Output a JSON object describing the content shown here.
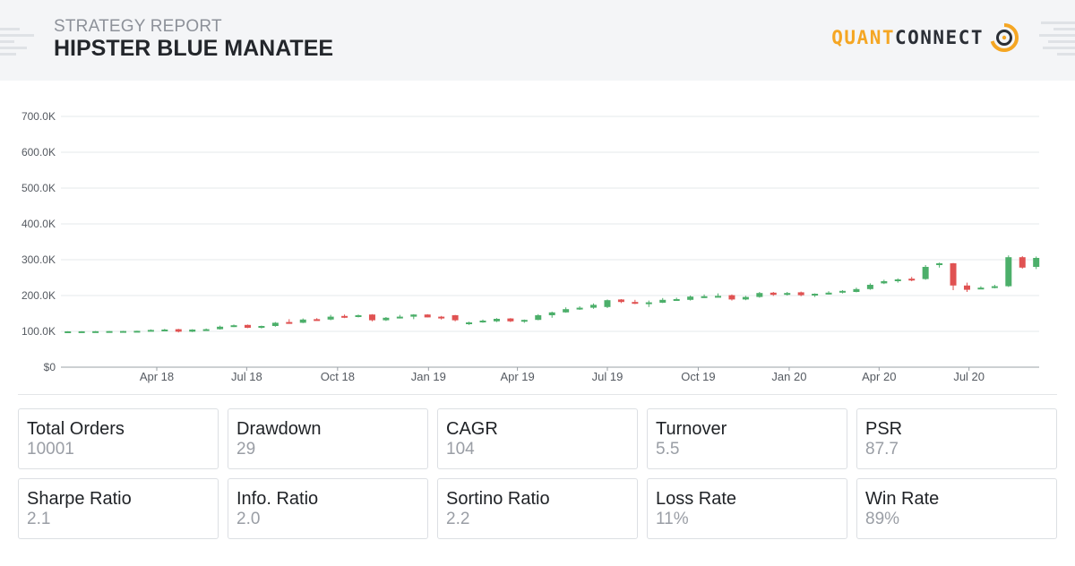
{
  "header": {
    "subtitle": "STRATEGY REPORT",
    "title": "HIPSTER BLUE MANATEE",
    "logo_left": "QUANT",
    "logo_right": "CONNECT",
    "brand_color": "#f5a623"
  },
  "chart_data": {
    "type": "candlestick",
    "title": "",
    "xlabel": "",
    "ylabel": "",
    "ylim": [
      0,
      700000
    ],
    "yticks": [
      {
        "value": 0,
        "label": "$0"
      },
      {
        "value": 100000,
        "label": "100.0K"
      },
      {
        "value": 200000,
        "label": "200.0K"
      },
      {
        "value": 300000,
        "label": "300.0K"
      },
      {
        "value": 400000,
        "label": "400.0K"
      },
      {
        "value": 500000,
        "label": "500.0K"
      },
      {
        "value": 600000,
        "label": "600.0K"
      },
      {
        "value": 700000,
        "label": "700.0K"
      }
    ],
    "xlim": [
      "2017-12-25",
      "2020-09-10"
    ],
    "xticks": [
      {
        "date": "2018-04-01",
        "label": "Apr 18"
      },
      {
        "date": "2018-07-01",
        "label": "Jul 18"
      },
      {
        "date": "2018-10-01",
        "label": "Oct 18"
      },
      {
        "date": "2019-01-01",
        "label": "Jan 19"
      },
      {
        "date": "2019-04-01",
        "label": "Apr 19"
      },
      {
        "date": "2019-07-01",
        "label": "Jul 19"
      },
      {
        "date": "2019-10-01",
        "label": "Oct 19"
      },
      {
        "date": "2020-01-01",
        "label": "Jan 20"
      },
      {
        "date": "2020-04-01",
        "label": "Apr 20"
      },
      {
        "date": "2020-07-01",
        "label": "Jul 20"
      }
    ],
    "grid": true,
    "up_color": "#4caf6a",
    "down_color": "#e05252",
    "candles": [
      {
        "date": "2018-01-01",
        "open": 100000,
        "high": 100500,
        "low": 99500,
        "close": 100000
      },
      {
        "date": "2018-01-15",
        "open": 100000,
        "high": 100500,
        "low": 99500,
        "close": 100200
      },
      {
        "date": "2018-01-29",
        "open": 100200,
        "high": 101000,
        "low": 99800,
        "close": 100400
      },
      {
        "date": "2018-02-12",
        "open": 100400,
        "high": 101200,
        "low": 100000,
        "close": 100800
      },
      {
        "date": "2018-02-26",
        "open": 100800,
        "high": 101500,
        "low": 100300,
        "close": 101000
      },
      {
        "date": "2018-03-12",
        "open": 101000,
        "high": 101800,
        "low": 100600,
        "close": 101500
      },
      {
        "date": "2018-03-26",
        "open": 101500,
        "high": 105500,
        "low": 101000,
        "close": 104000
      },
      {
        "date": "2018-04-09",
        "open": 104000,
        "high": 107000,
        "low": 102500,
        "close": 105000
      },
      {
        "date": "2018-04-23",
        "open": 106000,
        "high": 107000,
        "low": 97000,
        "close": 99000
      },
      {
        "date": "2018-05-07",
        "open": 99000,
        "high": 106000,
        "low": 98000,
        "close": 105000
      },
      {
        "date": "2018-05-21",
        "open": 105000,
        "high": 108000,
        "low": 104000,
        "close": 106000
      },
      {
        "date": "2018-06-04",
        "open": 106000,
        "high": 116000,
        "low": 105000,
        "close": 113000
      },
      {
        "date": "2018-06-18",
        "open": 113000,
        "high": 119000,
        "low": 112000,
        "close": 117000
      },
      {
        "date": "2018-07-02",
        "open": 118000,
        "high": 119000,
        "low": 109000,
        "close": 110000
      },
      {
        "date": "2018-07-16",
        "open": 110000,
        "high": 116000,
        "low": 108000,
        "close": 115000
      },
      {
        "date": "2018-07-30",
        "open": 115000,
        "high": 126000,
        "low": 113000,
        "close": 124000
      },
      {
        "date": "2018-08-13",
        "open": 126000,
        "high": 134000,
        "low": 121000,
        "close": 124000
      },
      {
        "date": "2018-08-27",
        "open": 124000,
        "high": 136000,
        "low": 123000,
        "close": 133000
      },
      {
        "date": "2018-09-10",
        "open": 134000,
        "high": 137000,
        "low": 131000,
        "close": 133000
      },
      {
        "date": "2018-09-24",
        "open": 133000,
        "high": 146000,
        "low": 131000,
        "close": 141000
      },
      {
        "date": "2018-10-08",
        "open": 143000,
        "high": 147000,
        "low": 137000,
        "close": 141000
      },
      {
        "date": "2018-10-22",
        "open": 141000,
        "high": 147000,
        "low": 139000,
        "close": 145000
      },
      {
        "date": "2018-11-05",
        "open": 147000,
        "high": 148000,
        "low": 128000,
        "close": 131000
      },
      {
        "date": "2018-11-19",
        "open": 131000,
        "high": 140000,
        "low": 129000,
        "close": 138000
      },
      {
        "date": "2018-12-03",
        "open": 138000,
        "high": 146000,
        "low": 136000,
        "close": 141000
      },
      {
        "date": "2018-12-17",
        "open": 141000,
        "high": 148000,
        "low": 134000,
        "close": 147000
      },
      {
        "date": "2018-12-31",
        "open": 147000,
        "high": 148000,
        "low": 139000,
        "close": 139000
      },
      {
        "date": "2019-01-14",
        "open": 141000,
        "high": 143000,
        "low": 133000,
        "close": 136000
      },
      {
        "date": "2019-01-28",
        "open": 145000,
        "high": 146000,
        "low": 128000,
        "close": 131000
      },
      {
        "date": "2019-02-11",
        "open": 123000,
        "high": 127000,
        "low": 118000,
        "close": 125000
      },
      {
        "date": "2019-02-25",
        "open": 125000,
        "high": 133000,
        "low": 124000,
        "close": 130000
      },
      {
        "date": "2019-03-11",
        "open": 128000,
        "high": 137000,
        "low": 126000,
        "close": 135000
      },
      {
        "date": "2019-03-25",
        "open": 136000,
        "high": 137000,
        "low": 126000,
        "close": 128000
      },
      {
        "date": "2019-04-08",
        "open": 127000,
        "high": 133000,
        "low": 124000,
        "close": 132000
      },
      {
        "date": "2019-04-22",
        "open": 132000,
        "high": 148000,
        "low": 131000,
        "close": 145000
      },
      {
        "date": "2019-05-06",
        "open": 145000,
        "high": 155000,
        "low": 138000,
        "close": 153000
      },
      {
        "date": "2019-05-20",
        "open": 153000,
        "high": 167000,
        "low": 152000,
        "close": 162000
      },
      {
        "date": "2019-06-03",
        "open": 162000,
        "high": 170000,
        "low": 160000,
        "close": 166000
      },
      {
        "date": "2019-06-17",
        "open": 166000,
        "high": 178000,
        "low": 163000,
        "close": 174000
      },
      {
        "date": "2019-07-01",
        "open": 168000,
        "high": 189000,
        "low": 165000,
        "close": 187000
      },
      {
        "date": "2019-07-15",
        "open": 189000,
        "high": 190000,
        "low": 179000,
        "close": 182000
      },
      {
        "date": "2019-07-29",
        "open": 182000,
        "high": 188000,
        "low": 176000,
        "close": 180000
      },
      {
        "date": "2019-08-12",
        "open": 180000,
        "high": 186000,
        "low": 168000,
        "close": 181000
      },
      {
        "date": "2019-08-26",
        "open": 180000,
        "high": 193000,
        "low": 179000,
        "close": 188000
      },
      {
        "date": "2019-09-09",
        "open": 188000,
        "high": 194000,
        "low": 186000,
        "close": 190000
      },
      {
        "date": "2019-09-23",
        "open": 188000,
        "high": 200000,
        "low": 186000,
        "close": 197000
      },
      {
        "date": "2019-10-07",
        "open": 195000,
        "high": 203000,
        "low": 193000,
        "close": 198000
      },
      {
        "date": "2019-10-21",
        "open": 197000,
        "high": 206000,
        "low": 195000,
        "close": 199000
      },
      {
        "date": "2019-11-04",
        "open": 201000,
        "high": 203000,
        "low": 186000,
        "close": 189000
      },
      {
        "date": "2019-11-18",
        "open": 189000,
        "high": 199000,
        "low": 187000,
        "close": 196000
      },
      {
        "date": "2019-12-02",
        "open": 196000,
        "high": 210000,
        "low": 194000,
        "close": 207000
      },
      {
        "date": "2019-12-16",
        "open": 208000,
        "high": 210000,
        "low": 199000,
        "close": 202000
      },
      {
        "date": "2019-12-30",
        "open": 202000,
        "high": 210000,
        "low": 200000,
        "close": 207000
      },
      {
        "date": "2020-01-13",
        "open": 209000,
        "high": 211000,
        "low": 198000,
        "close": 201000
      },
      {
        "date": "2020-01-27",
        "open": 201000,
        "high": 206000,
        "low": 196000,
        "close": 205000
      },
      {
        "date": "2020-02-10",
        "open": 205000,
        "high": 212000,
        "low": 203000,
        "close": 208000
      },
      {
        "date": "2020-02-24",
        "open": 208000,
        "high": 215000,
        "low": 206000,
        "close": 213000
      },
      {
        "date": "2020-03-09",
        "open": 210000,
        "high": 222000,
        "low": 209000,
        "close": 218000
      },
      {
        "date": "2020-03-23",
        "open": 218000,
        "high": 234000,
        "low": 216000,
        "close": 230000
      },
      {
        "date": "2020-04-06",
        "open": 234000,
        "high": 244000,
        "low": 232000,
        "close": 240000
      },
      {
        "date": "2020-04-20",
        "open": 240000,
        "high": 248000,
        "low": 236000,
        "close": 245000
      },
      {
        "date": "2020-05-04",
        "open": 247000,
        "high": 252000,
        "low": 240000,
        "close": 244000
      },
      {
        "date": "2020-05-18",
        "open": 246000,
        "high": 285000,
        "low": 244000,
        "close": 280000
      },
      {
        "date": "2020-06-01",
        "open": 285000,
        "high": 292000,
        "low": 278000,
        "close": 290000
      },
      {
        "date": "2020-06-15",
        "open": 290000,
        "high": 291000,
        "low": 215000,
        "close": 228000
      },
      {
        "date": "2020-06-29",
        "open": 228000,
        "high": 236000,
        "low": 210000,
        "close": 216000
      },
      {
        "date": "2020-07-13",
        "open": 221000,
        "high": 226000,
        "low": 218000,
        "close": 222000
      },
      {
        "date": "2020-07-27",
        "open": 222000,
        "high": 230000,
        "low": 220000,
        "close": 226000
      },
      {
        "date": "2020-08-10",
        "open": 226000,
        "high": 312000,
        "low": 224000,
        "close": 307000
      },
      {
        "date": "2020-08-24",
        "open": 307000,
        "high": 310000,
        "low": 275000,
        "close": 278000
      },
      {
        "date": "2020-09-07",
        "open": 280000,
        "high": 309000,
        "low": 274000,
        "close": 305000
      }
    ]
  },
  "stats": [
    {
      "label": "Total Orders",
      "value": "10001"
    },
    {
      "label": "Drawdown",
      "value": "29"
    },
    {
      "label": "CAGR",
      "value": "104"
    },
    {
      "label": "Turnover",
      "value": "5.5"
    },
    {
      "label": "PSR",
      "value": "87.7"
    },
    {
      "label": "Sharpe Ratio",
      "value": "2.1"
    },
    {
      "label": "Info. Ratio",
      "value": "2.0"
    },
    {
      "label": "Sortino Ratio",
      "value": "2.2"
    },
    {
      "label": "Loss Rate",
      "value": "11%"
    },
    {
      "label": "Win Rate",
      "value": "89%"
    }
  ]
}
